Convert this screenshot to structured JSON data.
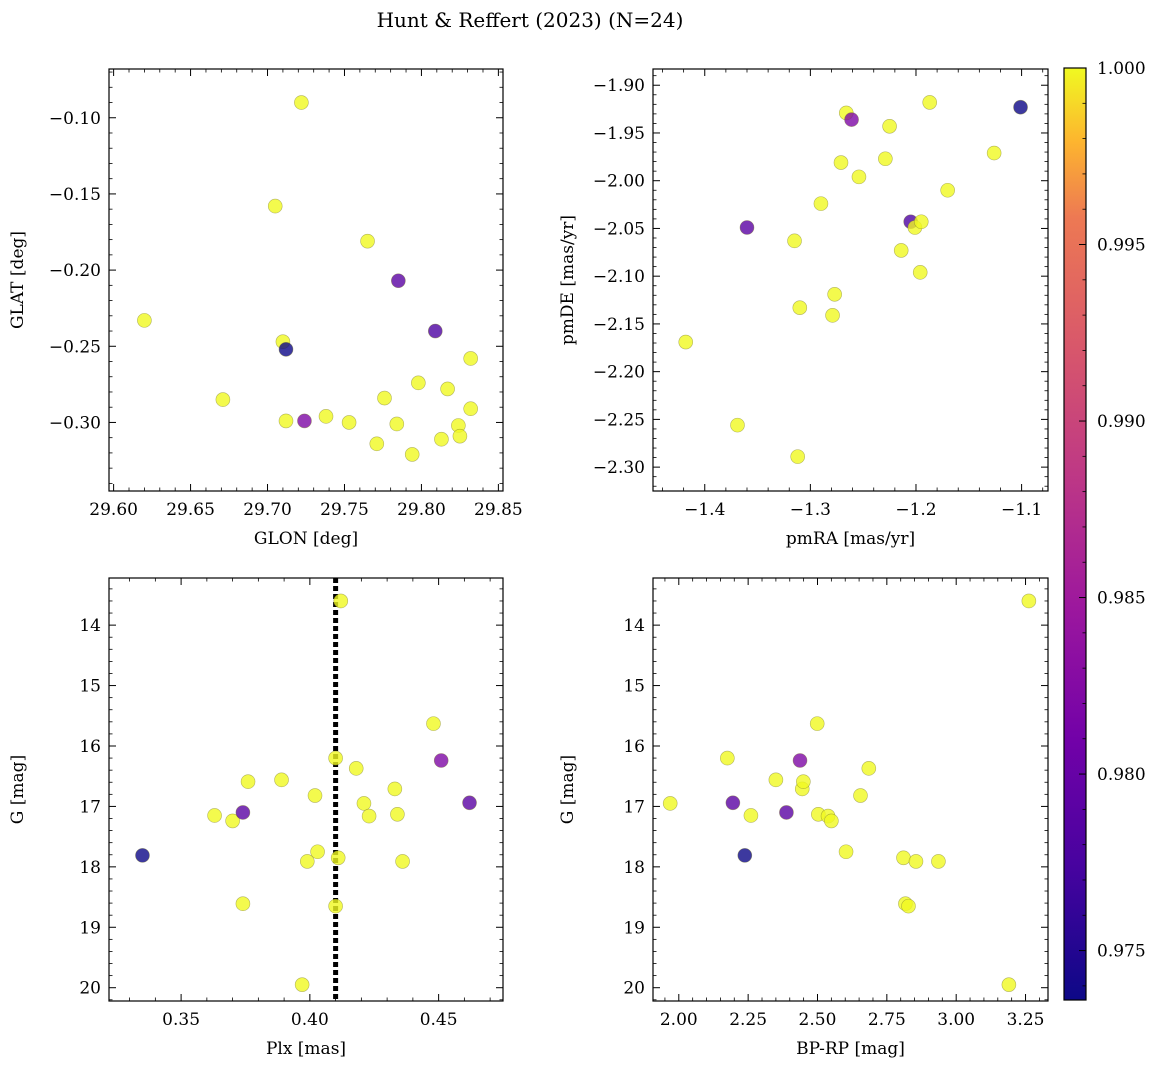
{
  "chart_data": {
    "title": "Hunt & Reffert (2023) (N=24)",
    "type": "scatter",
    "colorbar": {
      "cmap": "plasma",
      "range": [
        0.9736,
        1.0
      ],
      "ticks": [
        0.975,
        0.98,
        0.985,
        0.99,
        0.995,
        1.0
      ],
      "tick_labels": [
        "0.975",
        "0.980",
        "0.985",
        "0.990",
        "0.995",
        "1.000"
      ]
    },
    "panels": [
      {
        "xlabel": "GLON [deg]",
        "ylabel": "GLAT [deg]",
        "xlim": [
          29.597,
          29.853
        ],
        "ylim": [
          -0.345,
          -0.068
        ],
        "yinvert": false,
        "xticks": [
          29.6,
          29.65,
          29.7,
          29.75,
          29.8,
          29.85
        ],
        "xtick_labels": [
          "29.60",
          "29.65",
          "29.70",
          "29.75",
          "29.80",
          "29.85"
        ],
        "yticks": [
          -0.3,
          -0.25,
          -0.2,
          -0.15,
          -0.1
        ],
        "ytick_labels": [
          "−0.30",
          "−0.25",
          "−0.20",
          "−0.15",
          "−0.10"
        ],
        "vline": null,
        "points": [
          [
            29.62,
            -0.233,
            1.0
          ],
          [
            29.671,
            -0.285,
            1.0
          ],
          [
            29.705,
            -0.158,
            1.0
          ],
          [
            29.71,
            -0.247,
            1.0
          ],
          [
            29.712,
            -0.299,
            1.0
          ],
          [
            29.712,
            -0.252,
            0.9736
          ],
          [
            29.722,
            -0.09,
            1.0
          ],
          [
            29.724,
            -0.299,
            0.982
          ],
          [
            29.738,
            -0.296,
            1.0
          ],
          [
            29.753,
            -0.3,
            1.0
          ],
          [
            29.765,
            -0.181,
            1.0
          ],
          [
            29.771,
            -0.314,
            1.0
          ],
          [
            29.776,
            -0.284,
            1.0
          ],
          [
            29.784,
            -0.301,
            1.0
          ],
          [
            29.785,
            -0.207,
            0.979
          ],
          [
            29.794,
            -0.321,
            1.0
          ],
          [
            29.798,
            -0.274,
            1.0
          ],
          [
            29.809,
            -0.24,
            0.978
          ],
          [
            29.813,
            -0.311,
            1.0
          ],
          [
            29.817,
            -0.278,
            1.0
          ],
          [
            29.824,
            -0.302,
            1.0
          ],
          [
            29.825,
            -0.309,
            1.0
          ],
          [
            29.832,
            -0.258,
            1.0
          ],
          [
            29.832,
            -0.291,
            1.0
          ]
        ]
      },
      {
        "xlabel": "pmRA [mas/yr]",
        "ylabel": "pmDE [mas/yr]",
        "xlim": [
          -1.449,
          -1.075
        ],
        "ylim": [
          -2.325,
          -1.883
        ],
        "yinvert": false,
        "xticks": [
          -1.4,
          -1.3,
          -1.2,
          -1.1
        ],
        "xtick_labels": [
          "−1.4",
          "−1.3",
          "−1.2",
          "−1.1"
        ],
        "yticks": [
          -2.3,
          -2.25,
          -2.2,
          -2.15,
          -2.1,
          -2.05,
          -2.0,
          -1.95,
          -1.9
        ],
        "ytick_labels": [
          "−2.30",
          "−2.25",
          "−2.20",
          "−2.15",
          "−2.10",
          "−2.05",
          "−2.00",
          "−1.95",
          "−1.90"
        ],
        "vline": null,
        "points": [
          [
            -1.418,
            -2.169,
            1.0
          ],
          [
            -1.369,
            -2.256,
            1.0
          ],
          [
            -1.36,
            -2.049,
            0.979
          ],
          [
            -1.315,
            -2.063,
            1.0
          ],
          [
            -1.312,
            -2.289,
            1.0
          ],
          [
            -1.31,
            -2.133,
            1.0
          ],
          [
            -1.29,
            -2.024,
            1.0
          ],
          [
            -1.279,
            -2.141,
            1.0
          ],
          [
            -1.277,
            -2.119,
            1.0
          ],
          [
            -1.271,
            -1.981,
            1.0
          ],
          [
            -1.266,
            -1.929,
            1.0
          ],
          [
            -1.261,
            -1.936,
            0.982
          ],
          [
            -1.254,
            -1.996,
            1.0
          ],
          [
            -1.229,
            -1.977,
            1.0
          ],
          [
            -1.225,
            -1.943,
            1.0
          ],
          [
            -1.214,
            -2.073,
            1.0
          ],
          [
            -1.205,
            -2.043,
            0.978
          ],
          [
            -1.201,
            -2.049,
            1.0
          ],
          [
            -1.196,
            -2.096,
            1.0
          ],
          [
            -1.195,
            -2.043,
            1.0
          ],
          [
            -1.187,
            -1.918,
            1.0
          ],
          [
            -1.17,
            -2.01,
            1.0
          ],
          [
            -1.126,
            -1.971,
            1.0
          ],
          [
            -1.101,
            -1.923,
            0.9736
          ]
        ]
      },
      {
        "xlabel": "Plx [mas]",
        "ylabel": "G [mag]",
        "xlim": [
          0.322,
          0.475
        ],
        "ylim": [
          13.22,
          20.22
        ],
        "yinvert": true,
        "xticks": [
          0.35,
          0.4,
          0.45
        ],
        "xtick_labels": [
          "0.35",
          "0.40",
          "0.45"
        ],
        "yticks": [
          14,
          15,
          16,
          17,
          18,
          19,
          20
        ],
        "ytick_labels": [
          "14",
          "15",
          "16",
          "17",
          "18",
          "19",
          "20"
        ],
        "vline": 0.41,
        "points": [
          [
            0.335,
            17.81,
            0.9736
          ],
          [
            0.363,
            17.15,
            1.0
          ],
          [
            0.37,
            17.24,
            1.0
          ],
          [
            0.374,
            18.61,
            1.0
          ],
          [
            0.374,
            17.1,
            0.979
          ],
          [
            0.376,
            16.59,
            1.0
          ],
          [
            0.389,
            16.56,
            1.0
          ],
          [
            0.397,
            19.95,
            1.0
          ],
          [
            0.399,
            17.91,
            1.0
          ],
          [
            0.402,
            16.82,
            1.0
          ],
          [
            0.403,
            17.75,
            1.0
          ],
          [
            0.41,
            16.2,
            1.0
          ],
          [
            0.41,
            18.65,
            1.0
          ],
          [
            0.411,
            17.85,
            1.0
          ],
          [
            0.412,
            13.6,
            1.0
          ],
          [
            0.418,
            16.37,
            1.0
          ],
          [
            0.421,
            16.95,
            1.0
          ],
          [
            0.423,
            17.16,
            1.0
          ],
          [
            0.433,
            16.71,
            1.0
          ],
          [
            0.434,
            17.13,
            1.0
          ],
          [
            0.436,
            17.91,
            1.0
          ],
          [
            0.448,
            15.63,
            1.0
          ],
          [
            0.451,
            16.24,
            0.982
          ],
          [
            0.462,
            16.94,
            0.979
          ]
        ]
      },
      {
        "xlabel": "BP-RP [mag]",
        "ylabel": "G [mag]",
        "xlim": [
          1.907,
          3.331
        ],
        "ylim": [
          13.22,
          20.22
        ],
        "yinvert": true,
        "xticks": [
          2.0,
          2.25,
          2.5,
          2.75,
          3.0,
          3.25
        ],
        "xtick_labels": [
          "2.00",
          "2.25",
          "2.50",
          "2.75",
          "3.00",
          "3.25"
        ],
        "yticks": [
          14,
          15,
          16,
          17,
          18,
          19,
          20
        ],
        "ytick_labels": [
          "14",
          "15",
          "16",
          "17",
          "18",
          "19",
          "20"
        ],
        "vline": null,
        "points": [
          [
            1.969,
            16.95,
            1.0
          ],
          [
            2.175,
            16.2,
            1.0
          ],
          [
            2.195,
            16.94,
            0.979
          ],
          [
            2.238,
            17.81,
            0.9736
          ],
          [
            2.26,
            17.15,
            1.0
          ],
          [
            2.35,
            16.56,
            1.0
          ],
          [
            2.388,
            17.1,
            0.979
          ],
          [
            2.437,
            16.24,
            0.982
          ],
          [
            2.445,
            16.71,
            1.0
          ],
          [
            2.449,
            16.59,
            1.0
          ],
          [
            2.499,
            15.63,
            1.0
          ],
          [
            2.503,
            17.13,
            1.0
          ],
          [
            2.538,
            17.16,
            1.0
          ],
          [
            2.55,
            17.24,
            1.0
          ],
          [
            2.603,
            17.75,
            1.0
          ],
          [
            2.655,
            16.82,
            1.0
          ],
          [
            2.685,
            16.37,
            1.0
          ],
          [
            2.81,
            17.85,
            1.0
          ],
          [
            2.817,
            18.61,
            1.0
          ],
          [
            2.828,
            18.65,
            1.0
          ],
          [
            2.855,
            17.91,
            1.0
          ],
          [
            2.936,
            17.91,
            1.0
          ],
          [
            3.19,
            19.95,
            1.0
          ],
          [
            3.262,
            13.6,
            1.0
          ]
        ]
      }
    ]
  }
}
